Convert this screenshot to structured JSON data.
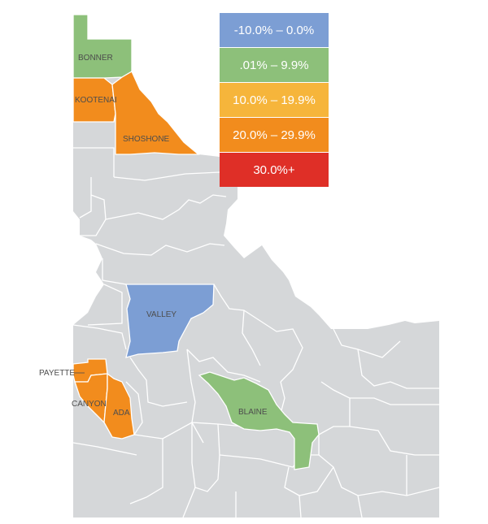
{
  "colors": {
    "base": "#d5d7d9",
    "county_line": "#ffffff",
    "negative": "#7c9ed4",
    "low": "#8dc07a",
    "mid": "#f6b53b",
    "high": "#f28c1d",
    "top": "#df2f27"
  },
  "legend": [
    {
      "label": "-10.0% – 0.0%",
      "color": "#7c9ed4"
    },
    {
      "label": ".01% – 9.9%",
      "color": "#8dc07a"
    },
    {
      "label": "10.0% – 19.9%",
      "color": "#f6b53b"
    },
    {
      "label": "20.0% – 29.9%",
      "color": "#f28c1d"
    },
    {
      "label": "30.0%+",
      "color": "#df2f27"
    }
  ],
  "counties": {
    "bonner": "BONNER",
    "kootenai": "KOOTENAI",
    "shoshone": "SHOSHONE",
    "valley": "VALLEY",
    "payette": "PAYETTE",
    "canyon": "CANYON",
    "ada": "ADA",
    "blaine": "BLAINE"
  }
}
